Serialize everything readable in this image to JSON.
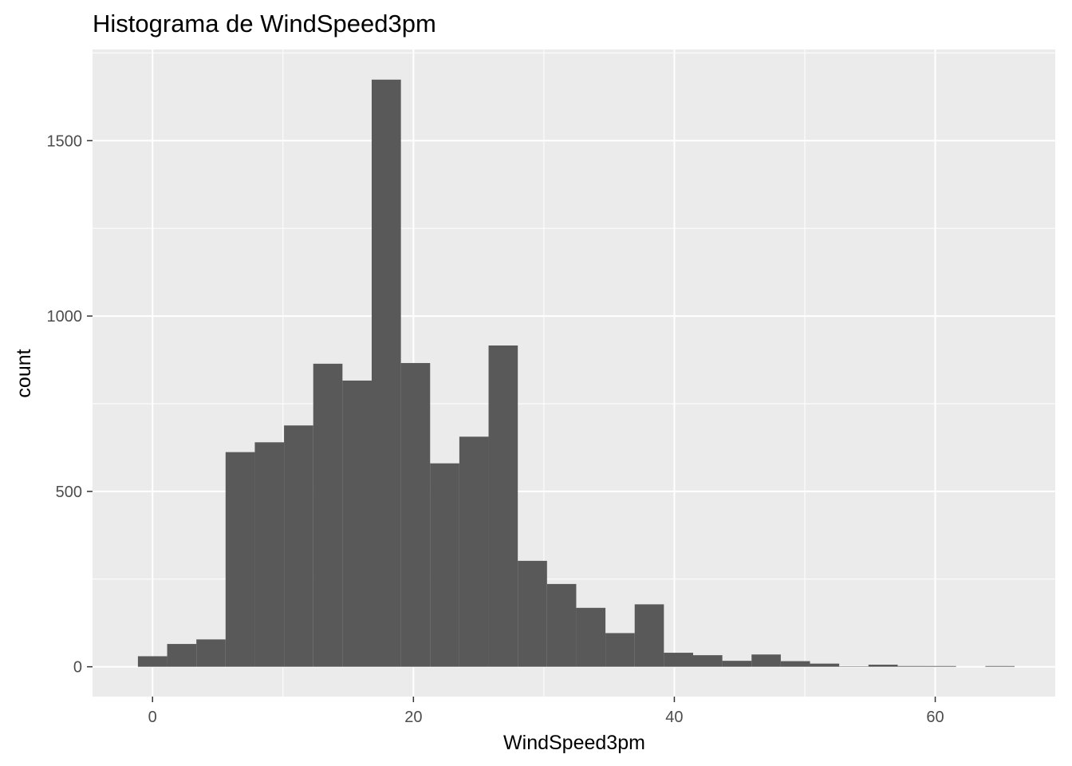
{
  "chart_data": {
    "type": "bar",
    "title": "Histograma de WindSpeed3pm",
    "xlabel": "WindSpeed3pm",
    "ylabel": "count",
    "xlim": [
      -4.6,
      69.2
    ],
    "ylim": [
      -85,
      1760
    ],
    "x_ticks": [
      0,
      20,
      40,
      60
    ],
    "y_ticks": [
      0,
      500,
      1000,
      1500
    ],
    "x_tick_labels": [
      "0",
      "20",
      "40",
      "60"
    ],
    "y_tick_labels": [
      "0",
      "500",
      "1000",
      "1500"
    ],
    "bin_width": 2.24,
    "bins": [
      {
        "x0": -1.12,
        "count": 30
      },
      {
        "x0": 1.12,
        "count": 65
      },
      {
        "x0": 3.36,
        "count": 78
      },
      {
        "x0": 5.6,
        "count": 612
      },
      {
        "x0": 7.84,
        "count": 640
      },
      {
        "x0": 10.08,
        "count": 688
      },
      {
        "x0": 12.32,
        "count": 864
      },
      {
        "x0": 14.56,
        "count": 816
      },
      {
        "x0": 16.8,
        "count": 1674
      },
      {
        "x0": 19.04,
        "count": 866
      },
      {
        "x0": 21.28,
        "count": 580
      },
      {
        "x0": 23.52,
        "count": 656
      },
      {
        "x0": 25.76,
        "count": 916
      },
      {
        "x0": 28.0,
        "count": 302
      },
      {
        "x0": 30.24,
        "count": 236
      },
      {
        "x0": 32.48,
        "count": 168
      },
      {
        "x0": 34.72,
        "count": 96
      },
      {
        "x0": 36.96,
        "count": 178
      },
      {
        "x0": 39.2,
        "count": 40
      },
      {
        "x0": 41.44,
        "count": 33
      },
      {
        "x0": 43.68,
        "count": 17
      },
      {
        "x0": 45.92,
        "count": 35
      },
      {
        "x0": 48.16,
        "count": 16
      },
      {
        "x0": 50.4,
        "count": 9
      },
      {
        "x0": 52.64,
        "count": 1
      },
      {
        "x0": 54.88,
        "count": 6
      },
      {
        "x0": 57.12,
        "count": 2
      },
      {
        "x0": 59.36,
        "count": 2
      },
      {
        "x0": 61.6,
        "count": 0
      },
      {
        "x0": 63.84,
        "count": 2
      }
    ],
    "grid": true,
    "colors": {
      "panel": "#ebebeb",
      "grid": "#ffffff",
      "bar": "#595959",
      "tick": "#333333",
      "tick_text": "#4d4d4d"
    }
  }
}
